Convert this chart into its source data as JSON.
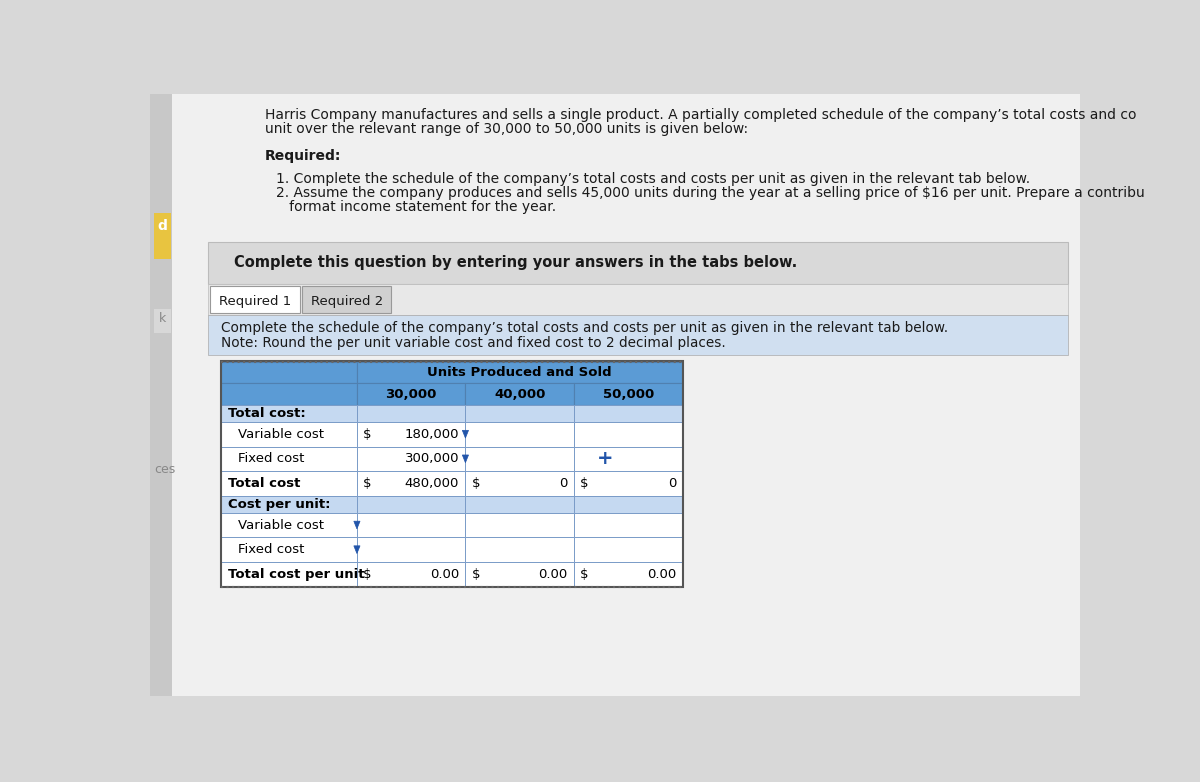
{
  "header_text": "Harris Company manufactures and sells a single product. A partially completed schedule of the company’s total costs and co",
  "header_text2": "unit over the relevant range of 30,000 to 50,000 units is given below:",
  "required_label": "Required:",
  "req1": "1. Complete the schedule of the company’s total costs and costs per unit as given in the relevant tab below.",
  "req2a": "2. Assume the company produces and sells 45,000 units during the year at a selling price of $16 per unit. Prepare a contribu",
  "req2b": "   format income statement for the year.",
  "complete_text": "Complete this question by entering your answers in the tabs below.",
  "tab1": "Required 1",
  "tab2": "Required 2",
  "instruction1": "Complete the schedule of the company’s total costs and costs per unit as given in the relevant tab below.",
  "instruction2": "Note: Round the per unit variable cost and fixed cost to 2 decimal places.",
  "table_header": "Units Produced and Sold",
  "col_headers": [
    "30,000",
    "40,000",
    "50,000"
  ],
  "bg_color_header_row": "#5b9bd5",
  "bg_color_white": "#ffffff",
  "bg_color_section": "#c5d9f1",
  "bg_color_note": "#d6e4f0",
  "bg_complete_box": "#d9d9d9",
  "bg_tab_area": "#d9d9d9",
  "bg_page": "#d8d8d8",
  "bg_content": "#f2f2f2",
  "border_color": "#888888",
  "text_dark": "#1a1a1a",
  "side_bar_color": "#e8c44a",
  "side_bar2_color": "#e0e0e0"
}
